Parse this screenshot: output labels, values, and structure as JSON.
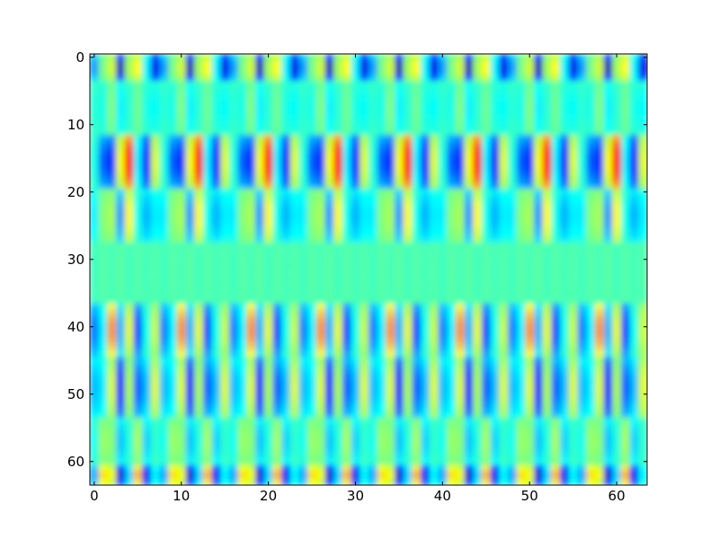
{
  "chart_data": {
    "type": "heatmap",
    "title": "",
    "xlabel": "",
    "ylabel": "",
    "grid": false,
    "xlim": [
      -0.5,
      63.5
    ],
    "ylim": [
      63.5,
      -0.5
    ],
    "y_inverted": true,
    "colormap": "jet",
    "value_range": [
      -1,
      1
    ],
    "rows": 64,
    "cols": 64,
    "x_ticks": [
      0,
      10,
      20,
      30,
      40,
      50,
      60
    ],
    "y_ticks": [
      0,
      10,
      20,
      30,
      40,
      50,
      60
    ],
    "x_tick_labels": [
      "0",
      "10",
      "20",
      "30",
      "40",
      "50",
      "60"
    ],
    "y_tick_labels": [
      "0",
      "10",
      "20",
      "30",
      "40",
      "50",
      "60"
    ],
    "column_pattern_period": 8,
    "column_patterns": [
      [
        -0.4,
        0.1,
        0.3,
        -0.9,
        0.2,
        0.4,
        -0.2,
        -0.8
      ],
      [
        -0.2,
        -0.3,
        0.3,
        -0.5,
        -0.2,
        0.2,
        -0.3,
        -0.4
      ],
      [
        -0.1,
        -0.5,
        -0.6,
        0.35,
        0.9,
        -0.2,
        -0.7,
        0.3
      ],
      [
        -0.3,
        0.2,
        0.3,
        -0.6,
        0.6,
        -0.2,
        -0.5,
        -0.3
      ],
      [
        -0.5,
        0.4,
        -0.2,
        0.5,
        -0.4,
        0.35,
        -0.3,
        0.2
      ],
      [
        -0.7,
        -0.3,
        0.95,
        -0.5,
        0.5,
        -0.9,
        -0.2,
        0.4
      ],
      [
        -0.3,
        -0.2,
        0.3,
        -0.7,
        0.2,
        -0.5,
        -0.3,
        0.3
      ],
      [
        -0.4,
        0.5,
        0.4,
        -0.9,
        -0.3,
        0.6,
        -0.8,
        -0.2
      ]
    ],
    "row_weights": [
      {
        "rows": [
          0,
          3
        ],
        "pattern": 0,
        "weight": 0.9
      },
      {
        "rows": [
          4,
          11
        ],
        "pattern": 1,
        "weight": 0.35
      },
      {
        "rows": [
          12,
          19
        ],
        "pattern": 2,
        "weight": 0.95
      },
      {
        "rows": [
          20,
          27
        ],
        "pattern": 3,
        "weight": 0.6
      },
      {
        "rows": [
          28,
          36
        ],
        "pattern": 4,
        "weight": 0.05
      },
      {
        "rows": [
          37,
          44
        ],
        "pattern": 5,
        "weight": 0.6
      },
      {
        "rows": [
          45,
          53
        ],
        "pattern": 6,
        "weight": 0.95
      },
      {
        "rows": [
          54,
          60
        ],
        "pattern": 7,
        "weight": 0.3
      },
      {
        "rows": [
          61,
          63
        ],
        "pattern": 7,
        "weight": 0.85
      }
    ]
  }
}
